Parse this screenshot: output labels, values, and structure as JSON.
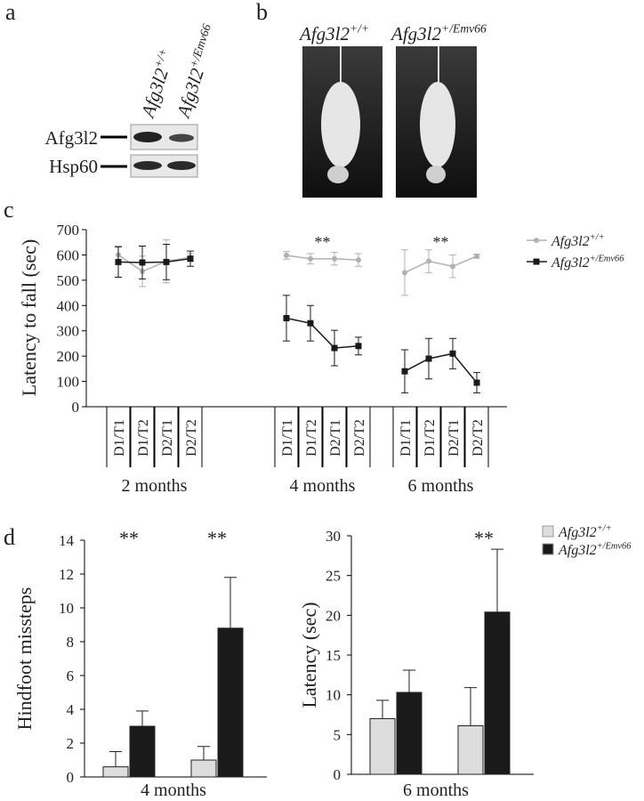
{
  "panel_labels": [
    "a",
    "b",
    "c",
    "d"
  ],
  "genotypes": [
    {
      "gene": "Afg3l2",
      "sup": "+/+"
    },
    {
      "gene": "Afg3l2",
      "sup": "+/Emv66"
    }
  ],
  "blot": {
    "proteins": [
      "Afg3l2",
      "Hsp60"
    ]
  },
  "chart_data": [
    {
      "type": "line",
      "ylabel": "Latency to fall (sec)",
      "categories": [
        "D1/T1",
        "D1/T2",
        "D2/T1",
        "D2/T2",
        "D1/T1",
        "D1/T2",
        "D2/T1",
        "D2/T2",
        "D1/T1",
        "D1/T2",
        "D2/T1",
        "D2/T2"
      ],
      "groups": [
        "2 months",
        "4 months",
        "6 months"
      ],
      "ylim": [
        0,
        700
      ],
      "yticks": [
        0,
        100,
        200,
        300,
        400,
        500,
        600,
        700
      ],
      "series": [
        {
          "name": "Afg3l2",
          "name_sup": "+/+",
          "color": "#b0b0b0",
          "values": [
            600,
            535,
            575,
            590,
            598,
            585,
            585,
            580,
            530,
            575,
            555,
            595
          ],
          "errors": [
            35,
            60,
            85,
            15,
            15,
            20,
            25,
            25,
            90,
            45,
            45,
            8
          ]
        },
        {
          "name": "Afg3l2",
          "name_sup": "+/Emv66",
          "color": "#1a1a1a",
          "values": [
            572,
            570,
            572,
            585,
            350,
            330,
            232,
            240,
            140,
            190,
            210,
            95
          ],
          "errors": [
            60,
            65,
            70,
            30,
            90,
            70,
            70,
            35,
            85,
            80,
            60,
            40
          ]
        }
      ],
      "annotations": [
        {
          "text": "**",
          "group": 1
        },
        {
          "text": "**",
          "group": 2
        }
      ]
    },
    {
      "type": "bar",
      "ylabel": "Hindfoot missteps",
      "xlabel": "4 months",
      "categories": [
        null,
        null
      ],
      "ylim": [
        0,
        14
      ],
      "yticks": [
        0,
        2,
        4,
        6,
        8,
        10,
        12,
        14
      ],
      "series": [
        {
          "name": "Afg3l2",
          "name_sup": "+/+",
          "color": "#dddddd",
          "values": [
            0.6,
            1.0
          ],
          "errors": [
            0.9,
            0.8
          ]
        },
        {
          "name": "Afg3l2",
          "name_sup": "+/Emv66",
          "color": "#1a1a1a",
          "values": [
            3.0,
            8.8
          ],
          "errors": [
            0.9,
            3.0
          ]
        }
      ],
      "annotations": [
        {
          "text": "**",
          "group": 0
        },
        {
          "text": "**",
          "group": 1
        }
      ]
    },
    {
      "type": "bar",
      "ylabel": "Latency (sec)",
      "xlabel": "6 months",
      "categories": [
        null,
        null
      ],
      "ylim": [
        0,
        30
      ],
      "yticks": [
        0,
        5,
        10,
        15,
        20,
        25,
        30
      ],
      "series": [
        {
          "name": "Afg3l2",
          "name_sup": "+/+",
          "color": "#dddddd",
          "values": [
            7.0,
            6.1
          ],
          "errors": [
            2.3,
            4.8
          ]
        },
        {
          "name": "Afg3l2",
          "name_sup": "+/Emv66",
          "color": "#1a1a1a",
          "values": [
            10.3,
            20.4
          ],
          "errors": [
            2.8,
            7.9
          ]
        }
      ],
      "annotations": [
        {
          "text": "**",
          "group": 1
        }
      ]
    }
  ]
}
